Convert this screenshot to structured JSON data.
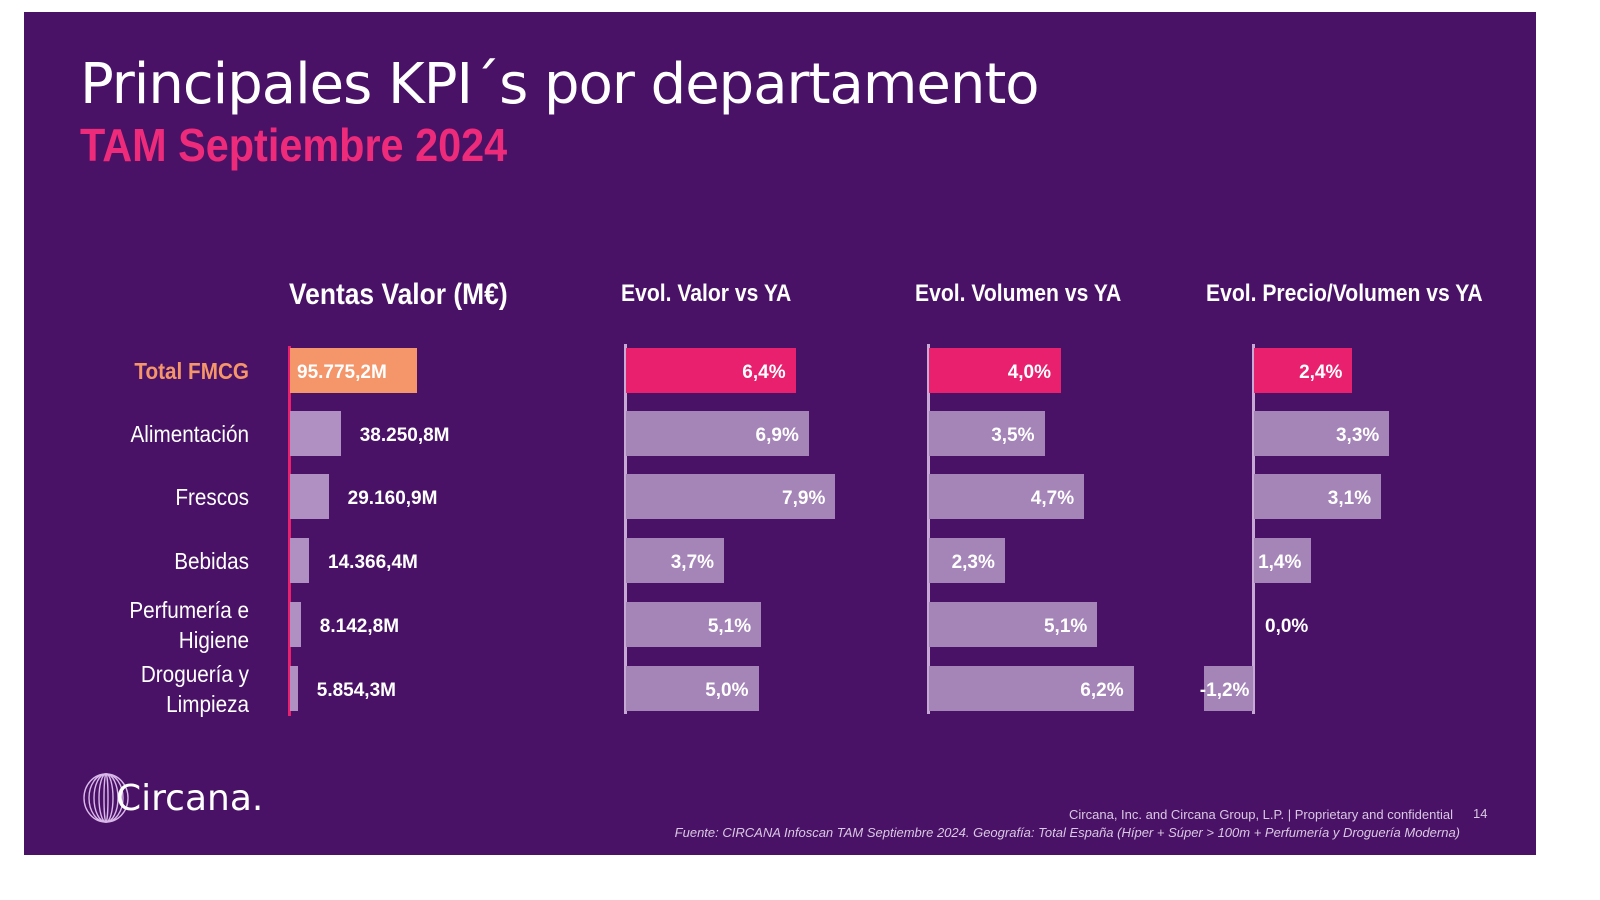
{
  "header": {
    "title": "Principales KPI´s por departamento",
    "subtitle": "TAM Septiembre 2024"
  },
  "categories": [
    "Total FMCG",
    "Alimentación",
    "Frescos",
    "Bebidas",
    "Perfumería e Higiene",
    "Droguería y Limpieza"
  ],
  "colors": {
    "background": "#4a1266",
    "highlight": "#e8206e",
    "total_value": "#f4956a",
    "bar": "#a584b8",
    "accent_text": "#ee2a7b"
  },
  "chart_data": [
    {
      "type": "bar",
      "orientation": "horizontal",
      "title": "Ventas Valor (M€)",
      "categories": [
        "Total FMCG",
        "Alimentación",
        "Frescos",
        "Bebidas",
        "Perfumería e Higiene",
        "Droguería y Limpieza"
      ],
      "values": [
        95775.2,
        38250.8,
        29160.9,
        14366.4,
        8142.8,
        5854.3
      ],
      "labels": [
        "95.775,2M",
        "38.250,8M",
        "29.160,9M",
        "14.366,4M",
        "8.142,8M",
        "5.854,3M"
      ],
      "unit": "M€"
    },
    {
      "type": "bar",
      "orientation": "horizontal",
      "title": "Evol. Valor vs YA",
      "categories": [
        "Total FMCG",
        "Alimentación",
        "Frescos",
        "Bebidas",
        "Perfumería e Higiene",
        "Droguería y Limpieza"
      ],
      "values": [
        6.4,
        6.9,
        7.9,
        3.7,
        5.1,
        5.0
      ],
      "labels": [
        "6,4%",
        "6,9%",
        "7,9%",
        "3,7%",
        "5,1%",
        "5,0%"
      ],
      "unit": "%"
    },
    {
      "type": "bar",
      "orientation": "horizontal",
      "title": "Evol. Volumen vs YA",
      "categories": [
        "Total FMCG",
        "Alimentación",
        "Frescos",
        "Bebidas",
        "Perfumería e Higiene",
        "Droguería y Limpieza"
      ],
      "values": [
        4.0,
        3.5,
        4.7,
        2.3,
        5.1,
        6.2
      ],
      "labels": [
        "4,0%",
        "3,5%",
        "4,7%",
        "2,3%",
        "5,1%",
        "6,2%"
      ],
      "unit": "%"
    },
    {
      "type": "bar",
      "orientation": "horizontal",
      "title": "Evol. Precio/Volumen vs YA",
      "categories": [
        "Total FMCG",
        "Alimentación",
        "Frescos",
        "Bebidas",
        "Perfumería e Higiene",
        "Droguería y Limpieza"
      ],
      "values": [
        2.4,
        3.3,
        3.1,
        1.4,
        0.0,
        -1.2
      ],
      "labels": [
        "2,4%",
        "3,3%",
        "3,1%",
        "1,4%",
        "0,0%",
        "-1,2%"
      ],
      "unit": "%"
    }
  ],
  "footer": {
    "logo": "Circana.",
    "confidential": "Circana, Inc. and Circana Group, L.P. |  Proprietary and confidential",
    "page": "14",
    "source": "Fuente: CIRCANA Infoscan TAM Septiembre 2024. Geografía: Total España (Híper + Súper > 100m + Perfumería y Droguería Moderna)"
  }
}
